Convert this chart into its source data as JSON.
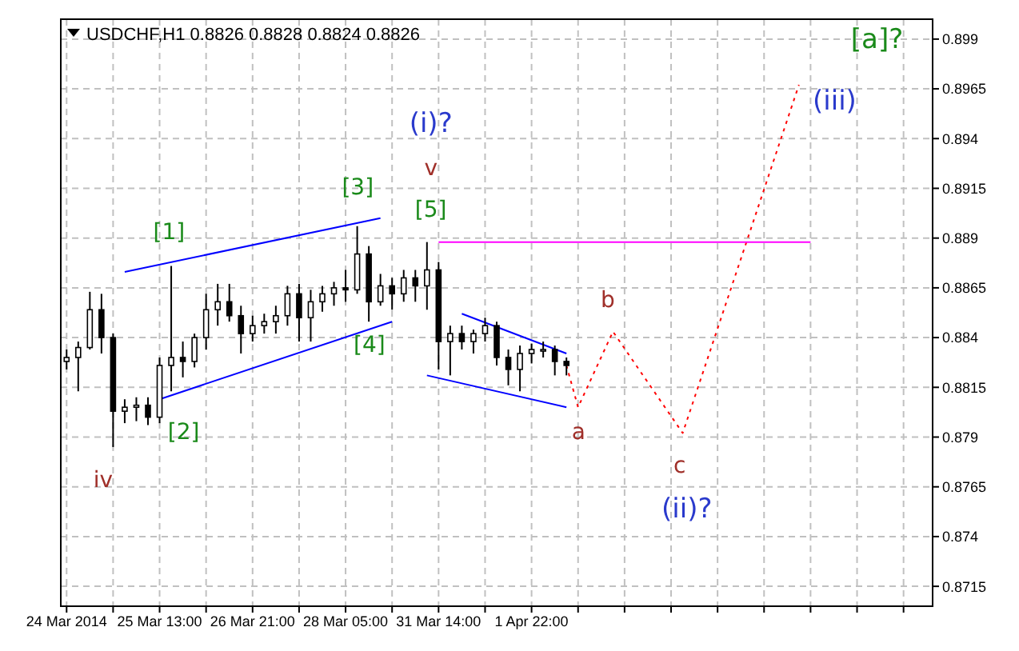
{
  "chart_data": {
    "type": "candlestick",
    "title": "USDCHF,H1  0.8826 0.8828 0.8824 0.8826",
    "color": "#000000",
    "categories": [
      "24 Mar 2014",
      null,
      null,
      null,
      null,
      null,
      null,
      null,
      "25 Mar 13:00",
      null,
      null,
      null,
      null,
      null,
      null,
      null,
      "26 Mar 21:00",
      null,
      null,
      null,
      null,
      null,
      null,
      null,
      "28 Mar 05:00",
      null,
      null,
      null,
      null,
      null,
      null,
      null,
      "31 Mar 14:00",
      null,
      null,
      null,
      null,
      null,
      null,
      null,
      "1 Apr 22:00",
      null,
      null,
      null,
      null,
      null,
      null,
      null,
      null,
      null,
      null,
      null,
      null,
      null,
      null,
      null,
      null,
      null,
      null,
      null,
      null,
      null,
      null,
      null,
      null,
      null,
      null,
      null,
      null,
      null,
      null,
      null,
      null,
      null,
      null
    ],
    "ohlc": [
      [
        0.8828,
        0.8834,
        0.8824,
        0.883
      ],
      [
        0.883,
        0.8838,
        0.8813,
        0.8835
      ],
      [
        0.8835,
        0.8863,
        0.8834,
        0.8854
      ],
      [
        0.8854,
        0.8862,
        0.8832,
        0.884
      ],
      [
        0.884,
        0.8842,
        0.8785,
        0.8803
      ],
      [
        0.8803,
        0.8809,
        0.8797,
        0.8805
      ],
      [
        0.8805,
        0.881,
        0.8798,
        0.8806
      ],
      [
        0.8806,
        0.881,
        0.8796,
        0.88
      ],
      [
        0.88,
        0.883,
        0.8797,
        0.8826
      ],
      [
        0.8826,
        0.8876,
        0.8813,
        0.883
      ],
      [
        0.883,
        0.8838,
        0.882,
        0.8828
      ],
      [
        0.8828,
        0.8842,
        0.8825,
        0.884
      ],
      [
        0.884,
        0.8862,
        0.8834,
        0.8854
      ],
      [
        0.8854,
        0.8867,
        0.8846,
        0.8858
      ],
      [
        0.8858,
        0.8867,
        0.8848,
        0.8851
      ],
      [
        0.8851,
        0.8856,
        0.8832,
        0.8842
      ],
      [
        0.8842,
        0.8851,
        0.8838,
        0.8846
      ],
      [
        0.8846,
        0.8852,
        0.8842,
        0.8848
      ],
      [
        0.8848,
        0.8856,
        0.8842,
        0.8851
      ],
      [
        0.8851,
        0.8866,
        0.8846,
        0.8862
      ],
      [
        0.8862,
        0.8867,
        0.8838,
        0.885
      ],
      [
        0.885,
        0.8864,
        0.8838,
        0.8858
      ],
      [
        0.8858,
        0.8866,
        0.8853,
        0.8862
      ],
      [
        0.8862,
        0.8868,
        0.8856,
        0.8865
      ],
      [
        0.8865,
        0.8874,
        0.8858,
        0.8864
      ],
      [
        0.8864,
        0.8896,
        0.8862,
        0.8882
      ],
      [
        0.8882,
        0.8886,
        0.8848,
        0.8858
      ],
      [
        0.8858,
        0.8872,
        0.8856,
        0.8866
      ],
      [
        0.8866,
        0.887,
        0.8854,
        0.8862
      ],
      [
        0.8862,
        0.8874,
        0.8858,
        0.887
      ],
      [
        0.887,
        0.8874,
        0.8858,
        0.8866
      ],
      [
        0.8866,
        0.8888,
        0.8854,
        0.8874
      ],
      [
        0.8874,
        0.8878,
        0.8824,
        0.8838
      ],
      [
        0.8838,
        0.8846,
        0.8821,
        0.8842
      ],
      [
        0.8842,
        0.8846,
        0.8834,
        0.8838
      ],
      [
        0.8838,
        0.8844,
        0.8832,
        0.8842
      ],
      [
        0.8842,
        0.885,
        0.8838,
        0.8846
      ],
      [
        0.8846,
        0.8848,
        0.8826,
        0.883
      ],
      [
        0.883,
        0.8834,
        0.8816,
        0.8824
      ],
      [
        0.8824,
        0.8836,
        0.8813,
        0.8832
      ],
      [
        0.8832,
        0.8837,
        0.8827,
        0.8834
      ],
      [
        0.8834,
        0.8838,
        0.883,
        0.8834
      ],
      [
        0.8834,
        0.8836,
        0.8821,
        0.8828
      ],
      [
        0.8828,
        0.883,
        0.8821,
        0.8826
      ],
      null,
      null,
      null,
      null,
      null,
      null,
      null,
      null,
      null,
      null,
      null,
      null,
      null,
      null,
      null,
      null,
      null,
      null,
      null,
      null,
      null,
      null,
      null,
      null,
      null,
      null,
      null,
      null,
      null,
      null,
      null
    ],
    "series": [
      {
        "type": "line",
        "color": "#ff0000",
        "line_style": "dotted",
        "values": [
          null,
          null,
          null,
          null,
          null,
          null,
          null,
          null,
          null,
          null,
          null,
          null,
          null,
          null,
          null,
          null,
          null,
          null,
          null,
          null,
          null,
          null,
          null,
          null,
          null,
          null,
          null,
          null,
          null,
          null,
          null,
          null,
          null,
          null,
          null,
          null,
          null,
          null,
          null,
          null,
          null,
          null,
          null,
          0.8826,
          0.8805,
          null,
          null,
          0.8843,
          null,
          null,
          null,
          null,
          null,
          0.8792,
          null,
          null,
          null,
          null,
          null,
          null,
          null,
          null,
          null,
          0.8967,
          null,
          null,
          null,
          null,
          null,
          null,
          null,
          null,
          null,
          null,
          null
        ]
      },
      {
        "type": "line",
        "color": "#0000ff",
        "line_style": "solid",
        "values": [
          null,
          null,
          null,
          null,
          null,
          0.8873,
          null,
          null,
          null,
          null,
          null,
          null,
          null,
          null,
          null,
          null,
          null,
          null,
          null,
          null,
          null,
          null,
          null,
          null,
          null,
          null,
          null,
          0.89,
          null,
          null,
          null,
          null,
          null,
          null,
          null,
          null,
          null,
          null,
          null,
          null,
          null,
          null,
          null,
          null,
          null,
          null,
          null,
          null,
          null,
          null,
          null,
          null,
          null,
          null,
          null,
          null,
          null,
          null,
          null,
          null,
          null,
          null,
          null,
          null,
          null,
          null,
          null,
          null,
          null,
          null,
          null,
          null,
          null,
          null,
          null
        ]
      },
      {
        "type": "line",
        "color": "#0000ff",
        "line_style": "solid",
        "values": [
          null,
          null,
          null,
          null,
          null,
          null,
          null,
          null,
          0.8809,
          null,
          null,
          null,
          null,
          null,
          null,
          null,
          null,
          null,
          null,
          null,
          null,
          null,
          null,
          null,
          null,
          null,
          null,
          null,
          0.8848,
          null,
          null,
          null,
          null,
          null,
          null,
          null,
          null,
          null,
          null,
          null,
          null,
          null,
          null,
          null,
          null,
          null,
          null,
          null,
          null,
          null,
          null,
          null,
          null,
          null,
          null,
          null,
          null,
          null,
          null,
          null,
          null,
          null,
          null,
          null,
          null,
          null,
          null,
          null,
          null,
          null,
          null,
          null,
          null,
          null,
          null
        ]
      },
      {
        "type": "line",
        "color": "#0000ff",
        "line_style": "solid",
        "values": [
          null,
          null,
          null,
          null,
          null,
          null,
          null,
          null,
          null,
          null,
          null,
          null,
          null,
          null,
          null,
          null,
          null,
          null,
          null,
          null,
          null,
          null,
          null,
          null,
          null,
          null,
          null,
          null,
          null,
          null,
          null,
          null,
          null,
          null,
          0.8852,
          null,
          null,
          null,
          null,
          null,
          null,
          null,
          null,
          0.8832,
          null,
          null,
          null,
          null,
          null,
          null,
          null,
          null,
          null,
          null,
          null,
          null,
          null,
          null,
          null,
          null,
          null,
          null,
          null,
          null,
          null,
          null,
          null,
          null,
          null,
          null,
          null,
          null,
          null,
          null,
          null
        ]
      },
      {
        "type": "line",
        "color": "#0000ff",
        "line_style": "solid",
        "values": [
          null,
          null,
          null,
          null,
          null,
          null,
          null,
          null,
          null,
          null,
          null,
          null,
          null,
          null,
          null,
          null,
          null,
          null,
          null,
          null,
          null,
          null,
          null,
          null,
          null,
          null,
          null,
          null,
          null,
          null,
          null,
          0.8821,
          null,
          null,
          null,
          null,
          null,
          null,
          null,
          null,
          null,
          null,
          null,
          0.8805,
          null,
          null,
          null,
          null,
          null,
          null,
          null,
          null,
          null,
          null,
          null,
          null,
          null,
          null,
          null,
          null,
          null,
          null,
          null,
          null,
          null,
          null,
          null,
          null,
          null,
          null,
          null,
          null,
          null,
          null,
          null
        ]
      },
      {
        "type": "line",
        "color": "#ff00ff",
        "line_style": "solid",
        "values": [
          null,
          null,
          null,
          null,
          null,
          null,
          null,
          null,
          null,
          null,
          null,
          null,
          null,
          null,
          null,
          null,
          null,
          null,
          null,
          null,
          null,
          null,
          null,
          null,
          null,
          null,
          null,
          null,
          null,
          null,
          null,
          null,
          0.8888,
          null,
          null,
          null,
          null,
          null,
          null,
          null,
          null,
          null,
          null,
          null,
          null,
          null,
          null,
          null,
          null,
          null,
          null,
          null,
          null,
          null,
          null,
          null,
          null,
          null,
          null,
          null,
          null,
          null,
          null,
          null,
          0.8888,
          null,
          null,
          null,
          null,
          null,
          null,
          null,
          null,
          null,
          null
        ]
      }
    ],
    "annotations": [
      "[1]",
      "[2]",
      "[3]",
      "[4]",
      "[5]",
      "v",
      "(i)?",
      "iv",
      "a",
      "b",
      "c",
      "(ii)?",
      "(iii)",
      "[a]?"
    ],
    "ylim": [
      0.8705,
      0.9
    ],
    "yticks": [
      0.8715,
      0.874,
      0.8765,
      0.879,
      0.8815,
      0.884,
      0.8865,
      0.889,
      0.8915,
      0.894,
      0.8965,
      0.899
    ],
    "grid": true
  }
}
